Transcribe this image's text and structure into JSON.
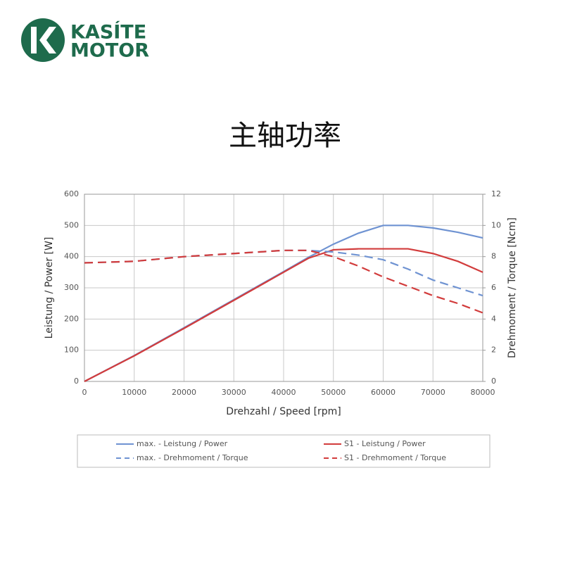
{
  "logo": {
    "line1": "KASÍTE",
    "line2": "MOTOR"
  },
  "chart_data": {
    "type": "line",
    "title": "主轴功率",
    "xlabel": "Drehzahl / Speed [rpm]",
    "ylabel": "Leistung / Power [W]",
    "y2label": "Drehmoment / Torque [Ncm]",
    "x": [
      0,
      10000,
      20000,
      30000,
      40000,
      45000,
      50000,
      55000,
      60000,
      65000,
      70000,
      75000,
      80000
    ],
    "series": [
      {
        "name": "max. - Leistung / Power",
        "color": "#6f93d2",
        "dashed": false,
        "values": [
          0,
          83,
          172,
          262,
          352,
          398,
          440,
          475,
          500,
          500,
          492,
          478,
          460
        ]
      },
      {
        "name": "S1 - Leistung / Power",
        "color": "#d23c3c",
        "dashed": false,
        "values": [
          0,
          82,
          170,
          260,
          350,
          395,
          422,
          425,
          425,
          425,
          410,
          385,
          350
        ]
      },
      {
        "name": "max. - Drehmoment / Torque",
        "color": "#6f93d2",
        "dashed": true,
        "axis": "y2",
        "values": [
          7.6,
          7.7,
          8.0,
          8.2,
          8.4,
          8.4,
          8.3,
          8.1,
          7.8,
          7.2,
          6.5,
          6.0,
          5.5
        ]
      },
      {
        "name": "S1 - Drehmoment / Torque",
        "color": "#d23c3c",
        "dashed": true,
        "axis": "y2",
        "values": [
          7.6,
          7.7,
          8.0,
          8.2,
          8.4,
          8.4,
          8.0,
          7.4,
          6.7,
          6.1,
          5.5,
          5.0,
          4.4
        ]
      }
    ],
    "xlim": [
      0,
      80000
    ],
    "xticks": [
      0,
      10000,
      20000,
      30000,
      40000,
      50000,
      60000,
      70000,
      80000
    ],
    "ylim": [
      0,
      600
    ],
    "yticks": [
      0,
      100,
      200,
      300,
      400,
      500,
      600
    ],
    "y2lim": [
      0,
      12
    ],
    "y2ticks": [
      0,
      2,
      4,
      6,
      8,
      10,
      12
    ],
    "grid": true
  }
}
